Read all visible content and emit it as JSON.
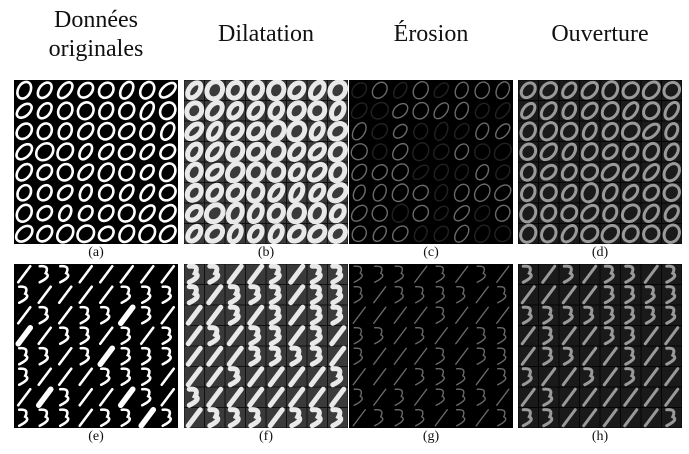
{
  "columns": [
    {
      "title": "Données originales"
    },
    {
      "title": "Dilatation"
    },
    {
      "title": "Érosion"
    },
    {
      "title": "Ouverture"
    }
  ],
  "rows": [
    {
      "captions": [
        "(a)",
        "(b)",
        "(c)",
        "(d)"
      ],
      "content": "zeros"
    },
    {
      "captions": [
        "(e)",
        "(f)",
        "(g)",
        "(h)"
      ],
      "content": "digits-1-3"
    }
  ],
  "panel_styles": [
    {
      "op": "original",
      "stroke": "#ffffff",
      "bg": "#000000"
    },
    {
      "op": "dilatation",
      "stroke": "#e9e9e9",
      "bg": "#101010"
    },
    {
      "op": "erosion",
      "stroke": "#6a6a6a",
      "bg": "#000000"
    },
    {
      "op": "ouverture",
      "stroke": "#9a9a9a",
      "bg": "#050505"
    }
  ]
}
